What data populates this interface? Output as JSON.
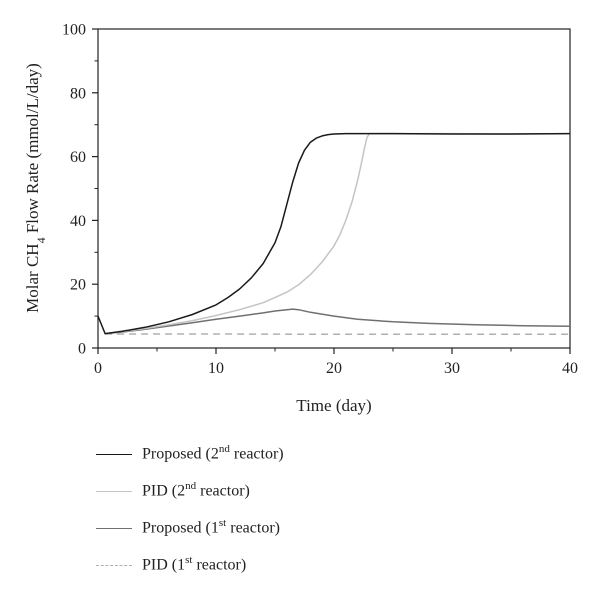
{
  "chart_data": {
    "type": "line",
    "xlabel": "Time (day)",
    "ylabel_parts": {
      "main": "Molar CH",
      "sub": "4",
      "rest": " Flow Rate (mmol/L/day)"
    },
    "xlim": [
      0,
      40
    ],
    "ylim": [
      0,
      100
    ],
    "xticks": [
      0,
      10,
      20,
      30,
      40
    ],
    "yticks": [
      0,
      20,
      40,
      60,
      80,
      100
    ],
    "grid": false,
    "legend_position": "bottom",
    "series": [
      {
        "key": "proposed_2nd",
        "label": {
          "pre": "Proposed (2",
          "sup": "nd",
          "post": " reactor)"
        },
        "color": "#1a1a1a",
        "dash": "",
        "x": [
          0,
          0.6,
          2,
          4,
          6,
          8,
          10,
          11,
          12,
          13,
          14,
          15,
          15.5,
          16,
          16.5,
          17,
          17.5,
          18,
          18.5,
          19,
          19.5,
          20,
          21,
          22,
          25,
          30,
          35,
          40
        ],
        "y": [
          10,
          4.5,
          5.2,
          6.5,
          8.2,
          10.5,
          13.5,
          15.8,
          18.5,
          22,
          26.5,
          33,
          38,
          45,
          52,
          58,
          62,
          64.5,
          65.8,
          66.5,
          66.9,
          67.1,
          67.2,
          67.2,
          67.2,
          67.1,
          67.1,
          67.2
        ]
      },
      {
        "key": "pid_2nd",
        "label": {
          "pre": "PID (2",
          "sup": "nd",
          "post": " reactor)"
        },
        "color": "#c4c4c4",
        "dash": "",
        "x": [
          0.6,
          2,
          4,
          6,
          8,
          10,
          12,
          14,
          16,
          17,
          18,
          19,
          20,
          20.5,
          21,
          21.5,
          22,
          22.3,
          22.6,
          22.8,
          23,
          25,
          30,
          35,
          40
        ],
        "y": [
          4.5,
          5.1,
          6.1,
          7.3,
          8.6,
          10.2,
          12,
          14.2,
          17.5,
          19.8,
          23,
          27,
          32,
          35.5,
          40,
          45.5,
          52.5,
          57.5,
          63,
          66,
          67.2,
          67.2,
          67.2,
          67.1,
          67.2
        ]
      },
      {
        "key": "proposed_1st",
        "label": {
          "pre": "Proposed (1",
          "sup": "st",
          "post": " reactor)"
        },
        "color": "#707070",
        "dash": "",
        "x": [
          0.6,
          2,
          4,
          6,
          8,
          10,
          12,
          14,
          15,
          16,
          16.5,
          17,
          18,
          20,
          22,
          25,
          28,
          32,
          36,
          40
        ],
        "y": [
          4.5,
          5,
          5.9,
          6.9,
          7.9,
          9,
          10,
          11,
          11.6,
          12,
          12.2,
          12,
          11.2,
          10,
          9,
          8.2,
          7.7,
          7.3,
          7,
          6.8
        ]
      },
      {
        "key": "pid_1st",
        "label": {
          "pre": "PID (1",
          "sup": "st",
          "post": " reactor)"
        },
        "color": "#b0b0b0",
        "dash": "7,5",
        "x": [
          0.6,
          5,
          10,
          20,
          30,
          40
        ],
        "y": [
          4.4,
          4.4,
          4.4,
          4.3,
          4.3,
          4.3
        ]
      }
    ]
  }
}
